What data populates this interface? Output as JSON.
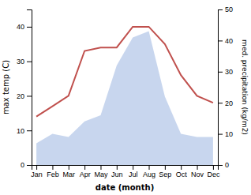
{
  "chart_data": {
    "type": "line",
    "xlabel": "date (month)",
    "ylabel": "max temp (C)",
    "y2label": "med. precipitation (kg/m2)",
    "categories": [
      "Jan",
      "Feb",
      "Mar",
      "Apr",
      "May",
      "Jun",
      "Jul",
      "Aug",
      "Sep",
      "Oct",
      "Nov",
      "Dec"
    ],
    "series": [
      {
        "type": "area",
        "axis": "y2",
        "color": "#9ab4e0",
        "values": [
          7,
          10,
          9,
          14,
          16,
          32,
          41,
          43,
          22,
          10,
          9,
          9
        ]
      },
      {
        "type": "line",
        "color": "#c0504d",
        "values": [
          14,
          17,
          20,
          33,
          34,
          34,
          40,
          40,
          35,
          26,
          20,
          18
        ]
      }
    ],
    "ylim": [
      0,
      45
    ],
    "yticks": [
      0,
      10,
      20,
      30,
      40
    ],
    "y2lim": [
      0,
      50
    ],
    "y2ticks": [
      0,
      10,
      20,
      30,
      40,
      50
    ]
  }
}
